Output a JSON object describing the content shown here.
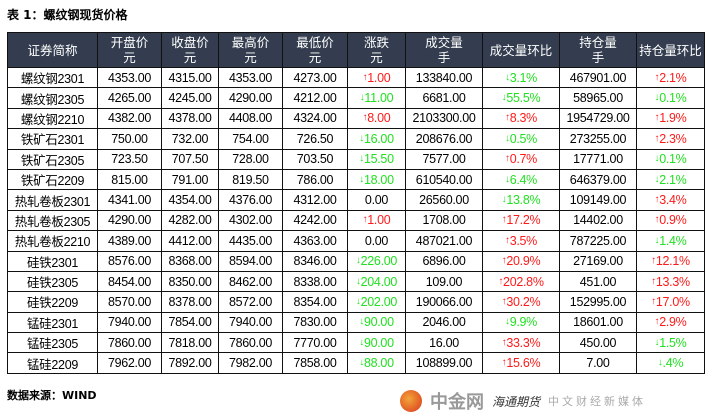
{
  "title": "表 1：螺纹钢现货价格",
  "source": "数据来源：WIND",
  "headers": [
    [
      "证券简称",
      ""
    ],
    [
      "开盘价",
      "元"
    ],
    [
      "收盘价",
      "元"
    ],
    [
      "最高价",
      "元"
    ],
    [
      "最低价",
      "元"
    ],
    [
      "涨跌",
      "元"
    ],
    [
      "成交量",
      "手"
    ],
    [
      "成交量环比",
      ""
    ],
    [
      "持仓量",
      "手"
    ],
    [
      "持仓量环比",
      ""
    ]
  ],
  "colors": {
    "up": "#ff1a1a",
    "down": "#22e022",
    "header_bg": "#333d4f"
  },
  "rows": [
    [
      "螺纹钢2301",
      "4353.00",
      "4315.00",
      "4353.00",
      "4273.00",
      [
        "up",
        "1.00"
      ],
      "133840.00",
      [
        "down",
        "3.1%"
      ],
      "467901.00",
      [
        "up",
        "2.1%"
      ]
    ],
    [
      "螺纹钢2305",
      "4265.00",
      "4245.00",
      "4290.00",
      "4212.00",
      [
        "down",
        "11.00"
      ],
      "6681.00",
      [
        "down",
        "55.5%"
      ],
      "58965.00",
      [
        "down",
        "0.1%"
      ]
    ],
    [
      "螺纹钢2210",
      "4382.00",
      "4378.00",
      "4408.00",
      "4324.00",
      [
        "up",
        "8.00"
      ],
      "2103300.00",
      [
        "up",
        "8.3%"
      ],
      "1954729.00",
      [
        "up",
        "1.9%"
      ]
    ],
    [
      "铁矿石2301",
      "750.00",
      "732.00",
      "754.00",
      "726.50",
      [
        "down",
        "16.00"
      ],
      "208676.00",
      [
        "down",
        "0.5%"
      ],
      "273255.00",
      [
        "up",
        "2.3%"
      ]
    ],
    [
      "铁矿石2305",
      "723.50",
      "707.50",
      "728.00",
      "703.50",
      [
        "down",
        "15.50"
      ],
      "7577.00",
      [
        "up",
        "0.7%"
      ],
      "17771.00",
      [
        "down",
        "0.1%"
      ]
    ],
    [
      "铁矿石2209",
      "815.00",
      "791.00",
      "819.50",
      "786.00",
      [
        "down",
        "18.00"
      ],
      "610540.00",
      [
        "down",
        "6.4%"
      ],
      "646379.00",
      [
        "down",
        "2.1%"
      ]
    ],
    [
      "热轧卷板2301",
      "4341.00",
      "4354.00",
      "4376.00",
      "4312.00",
      [
        "none",
        "0.00"
      ],
      "26560.00",
      [
        "down",
        "13.8%"
      ],
      "109149.00",
      [
        "up",
        "3.4%"
      ]
    ],
    [
      "热轧卷板2305",
      "4290.00",
      "4282.00",
      "4302.00",
      "4242.00",
      [
        "up",
        "1.00"
      ],
      "1708.00",
      [
        "up",
        "17.2%"
      ],
      "14402.00",
      [
        "up",
        "0.9%"
      ]
    ],
    [
      "热轧卷板2210",
      "4389.00",
      "4412.00",
      "4435.00",
      "4363.00",
      [
        "none",
        "0.00"
      ],
      "487021.00",
      [
        "up",
        "3.5%"
      ],
      "787225.00",
      [
        "down",
        "1.4%"
      ]
    ],
    [
      "硅铁2301",
      "8576.00",
      "8368.00",
      "8594.00",
      "8346.00",
      [
        "down",
        "226.00"
      ],
      "6896.00",
      [
        "up",
        "20.9%"
      ],
      "27169.00",
      [
        "up",
        "12.1%"
      ]
    ],
    [
      "硅铁2305",
      "8454.00",
      "8350.00",
      "8462.00",
      "8338.00",
      [
        "down",
        "204.00"
      ],
      "109.00",
      [
        "up",
        "202.8%"
      ],
      "451.00",
      [
        "up",
        "13.3%"
      ]
    ],
    [
      "硅铁2209",
      "8570.00",
      "8378.00",
      "8572.00",
      "8354.00",
      [
        "down",
        "202.00"
      ],
      "190066.00",
      [
        "up",
        "30.2%"
      ],
      "152995.00",
      [
        "up",
        "17.0%"
      ]
    ],
    [
      "锰硅2301",
      "7940.00",
      "7854.00",
      "7940.00",
      "7830.00",
      [
        "down",
        "90.00"
      ],
      "2046.00",
      [
        "down",
        "9.9%"
      ],
      "18601.00",
      [
        "up",
        "2.9%"
      ]
    ],
    [
      "锰硅2305",
      "7860.00",
      "7818.00",
      "7860.00",
      "7770.00",
      [
        "down",
        "90.00"
      ],
      "16.00",
      [
        "up",
        "33.3%"
      ],
      "450.00",
      [
        "down",
        "1.5%"
      ]
    ],
    [
      "锰硅2209",
      "7962.00",
      "7892.00",
      "7982.00",
      "7858.00",
      [
        "down",
        "88.00"
      ],
      "108899.00",
      [
        "up",
        "15.6%"
      ],
      "7.00",
      [
        "down",
        ".4%"
      ]
    ]
  ],
  "watermark": {
    "brand": "中金网",
    "sub": "中文财经新媒体",
    "overlay": "海通期货"
  }
}
